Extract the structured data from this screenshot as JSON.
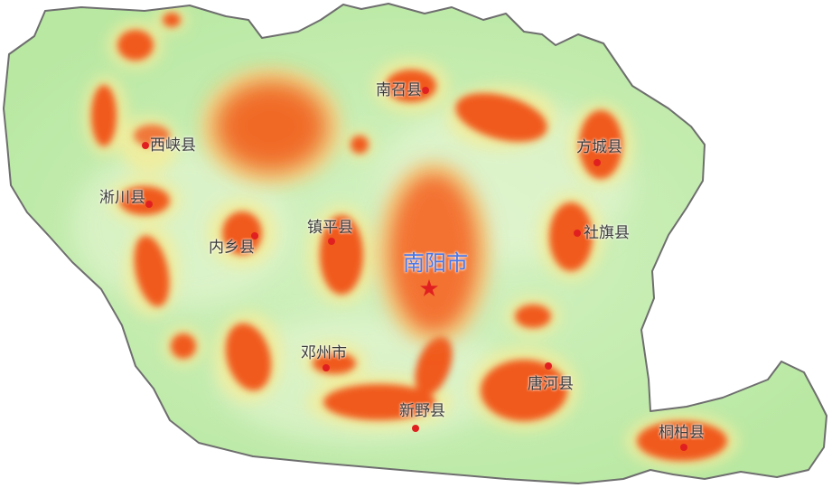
{
  "map": {
    "colors": {
      "base": "#b8e8a2",
      "hot": "#f05a1e",
      "warm": "#f4a046",
      "mid": "#f2ed9c",
      "border": "#6e6e6e",
      "marker": "#e02020",
      "city_label": "#4a78e8"
    },
    "city": {
      "name": "南阳市",
      "marker_icon": "star-icon"
    },
    "counties": [
      {
        "id": "nanzhao",
        "name": "南召县"
      },
      {
        "id": "xixia",
        "name": "西峡县"
      },
      {
        "id": "fangcheng",
        "name": "方城县"
      },
      {
        "id": "xichuan",
        "name": "淅川县"
      },
      {
        "id": "zhenping",
        "name": "镇平县"
      },
      {
        "id": "sheqi",
        "name": "社旗县"
      },
      {
        "id": "neixiang",
        "name": "内乡县"
      },
      {
        "id": "dengzhou",
        "name": "邓州市"
      },
      {
        "id": "tanghe",
        "name": "唐河县"
      },
      {
        "id": "xinye",
        "name": "新野县"
      },
      {
        "id": "tongbai",
        "name": "桐柏县"
      }
    ]
  }
}
